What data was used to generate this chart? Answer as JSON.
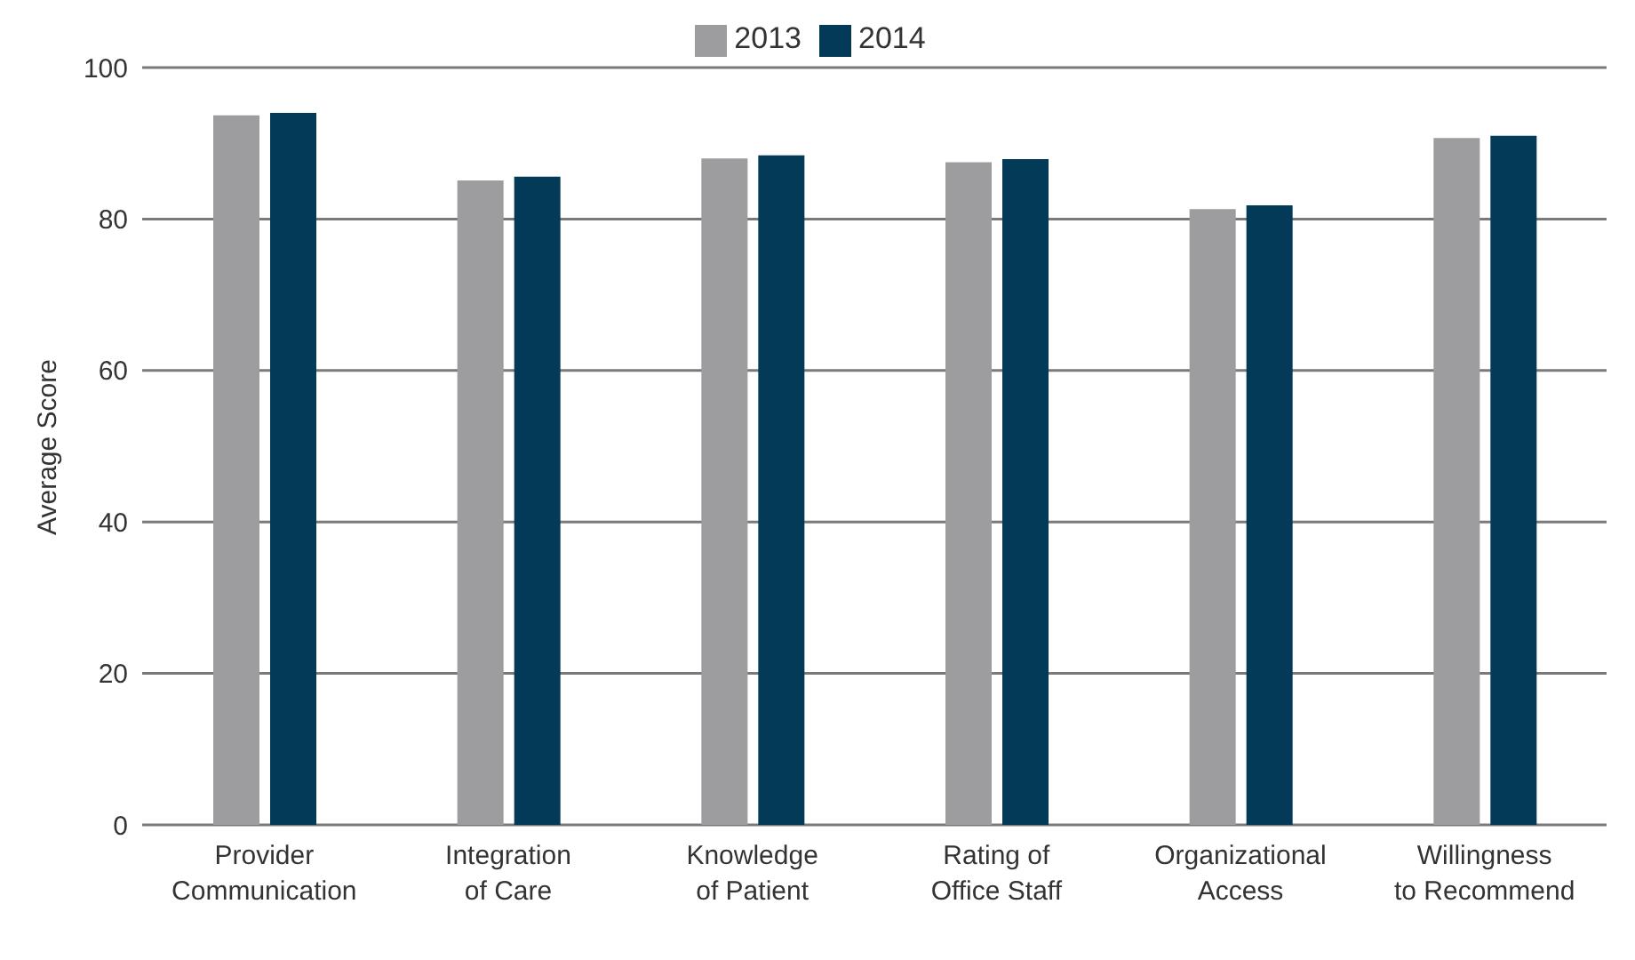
{
  "chart_data": {
    "type": "bar",
    "ylabel": "Average Score",
    "categories": [
      "Provider\nCommunication",
      "Integration\nof Care",
      "Knowledge\nof Patient",
      "Rating of\nOffice Staff",
      "Organizational\nAccess",
      "Willingness\nto Recommend"
    ],
    "series": [
      {
        "name": "2013",
        "color": "#9d9d9f",
        "values": [
          93.7,
          85.1,
          88.0,
          87.5,
          81.3,
          90.7
        ]
      },
      {
        "name": "2014",
        "color": "#033a58",
        "values": [
          94.0,
          85.6,
          88.4,
          87.9,
          81.8,
          91.0
        ]
      }
    ],
    "ylim": [
      0,
      100
    ],
    "yticks": [
      0,
      20,
      40,
      60,
      80,
      100
    ],
    "grid": "y",
    "legend": "top"
  }
}
